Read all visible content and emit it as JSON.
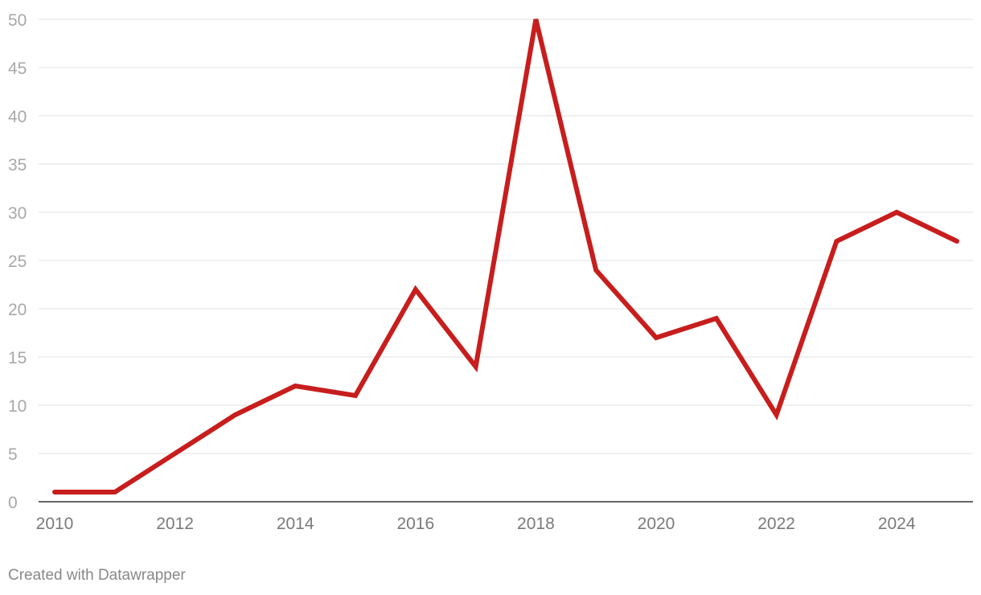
{
  "chart_data": {
    "type": "line",
    "title": "",
    "xlabel": "",
    "ylabel": "",
    "x": [
      2010,
      2011,
      2012,
      2013,
      2014,
      2015,
      2016,
      2017,
      2018,
      2019,
      2020,
      2021,
      2022,
      2023,
      2024,
      2025
    ],
    "series": [
      {
        "values": [
          1,
          1,
          5,
          9,
          12,
          11,
          22,
          14,
          50,
          24,
          17,
          19,
          9,
          27,
          30,
          27
        ],
        "color": "#c71e1d"
      }
    ],
    "xlim": [
      2010,
      2025
    ],
    "ylim": [
      0,
      50
    ],
    "y_ticks": [
      0,
      5,
      10,
      15,
      20,
      25,
      30,
      35,
      40,
      45,
      50
    ],
    "x_ticks": [
      2010,
      2012,
      2014,
      2016,
      2018,
      2020,
      2022,
      2024
    ],
    "grid": true,
    "legend": "none"
  },
  "footer": {
    "credit": "Created with Datawrapper"
  }
}
